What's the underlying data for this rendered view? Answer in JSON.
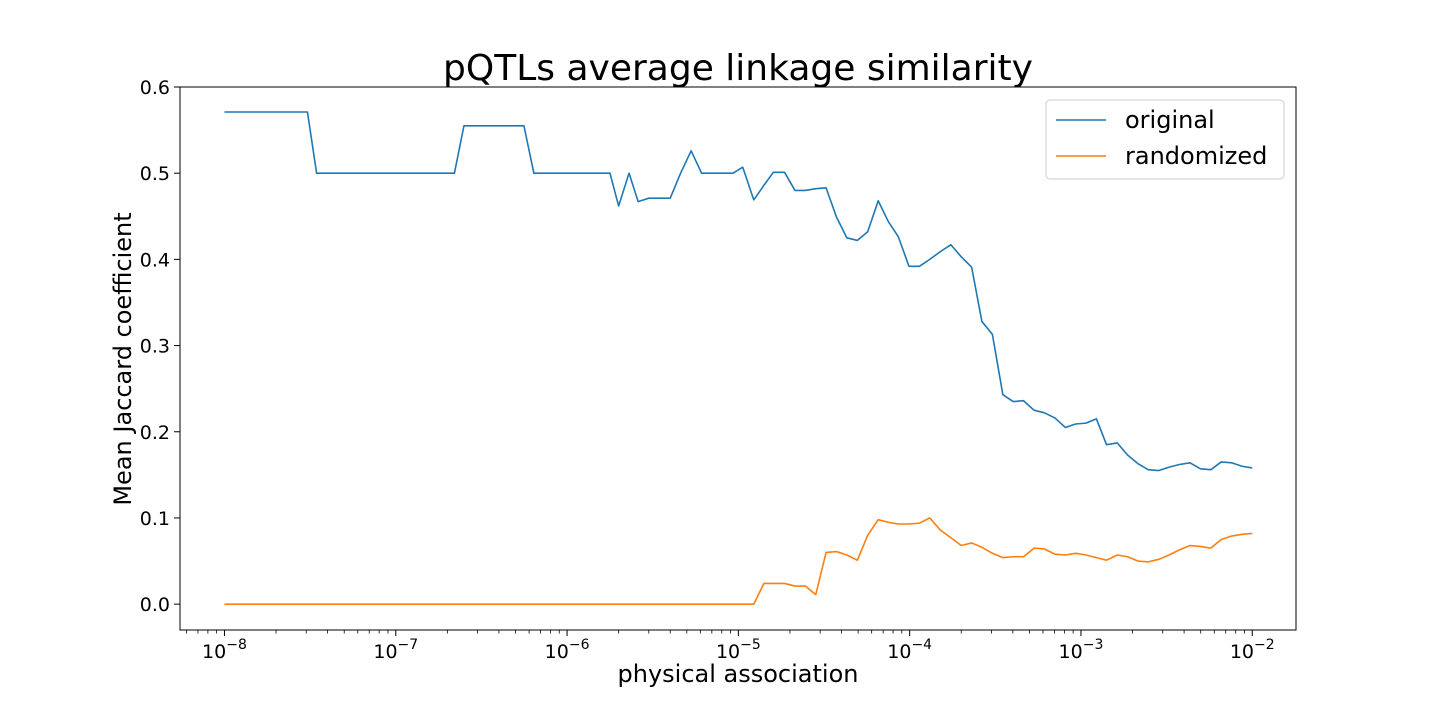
{
  "chart_data": {
    "type": "line",
    "title": "pQTLs average linkage similarity",
    "xlabel": "physical association",
    "ylabel": "Mean Jaccard coefficient",
    "xscale": "log",
    "xlim": [
      5.5e-09,
      0.018
    ],
    "ylim": [
      -0.03,
      0.6
    ],
    "grid": false,
    "legend_position": "top-right",
    "x_ticks": [
      {
        "value": 1e-08,
        "base": "10",
        "exp": "−8"
      },
      {
        "value": 1e-07,
        "base": "10",
        "exp": "−7"
      },
      {
        "value": 1e-06,
        "base": "10",
        "exp": "−6"
      },
      {
        "value": 1e-05,
        "base": "10",
        "exp": "−5"
      },
      {
        "value": 0.0001,
        "base": "10",
        "exp": "−4"
      },
      {
        "value": 0.001,
        "base": "10",
        "exp": "−3"
      },
      {
        "value": 0.01,
        "base": "10",
        "exp": "−2"
      }
    ],
    "y_ticks": [
      {
        "value": 0.0,
        "label": "0.0"
      },
      {
        "value": 0.1,
        "label": "0.1"
      },
      {
        "value": 0.2,
        "label": "0.2"
      },
      {
        "value": 0.3,
        "label": "0.3"
      },
      {
        "value": 0.4,
        "label": "0.4"
      },
      {
        "value": 0.5,
        "label": "0.5"
      },
      {
        "value": 0.6,
        "label": "0.6"
      }
    ],
    "series": [
      {
        "name": "original",
        "color": "#1f77b4",
        "points": [
          [
            1e-08,
            0.571
          ],
          [
            3.05e-08,
            0.571
          ],
          [
            3.45e-08,
            0.5
          ],
          [
            2.2e-07,
            0.5
          ],
          [
            2.5e-07,
            0.555
          ],
          [
            5.6e-07,
            0.555
          ],
          [
            6.4e-07,
            0.5
          ],
          [
            1.78e-06,
            0.5
          ],
          [
            2e-06,
            0.462
          ],
          [
            2.3e-06,
            0.5
          ],
          [
            2.6e-06,
            0.467
          ],
          [
            3e-06,
            0.471
          ],
          [
            4e-06,
            0.471
          ],
          [
            4.6e-06,
            0.5
          ],
          [
            5.3e-06,
            0.526
          ],
          [
            6.1e-06,
            0.5
          ],
          [
            8e-06,
            0.5
          ],
          [
            9.3e-06,
            0.5
          ],
          [
            1.06e-05,
            0.507
          ],
          [
            1.23e-05,
            0.469
          ],
          [
            1.41e-05,
            0.486
          ],
          [
            1.6e-05,
            0.501
          ],
          [
            1.86e-05,
            0.501
          ],
          [
            2.14e-05,
            0.48
          ],
          [
            2.46e-05,
            0.48
          ],
          [
            2.83e-05,
            0.482
          ],
          [
            3.25e-05,
            0.483
          ],
          [
            3.74e-05,
            0.449
          ],
          [
            4.3e-05,
            0.425
          ],
          [
            4.95e-05,
            0.422
          ],
          [
            5.69e-05,
            0.432
          ],
          [
            6.55e-05,
            0.468
          ],
          [
            7.5e-05,
            0.444
          ],
          [
            8.6e-05,
            0.426
          ],
          [
            9.9e-05,
            0.392
          ],
          [
            0.000114,
            0.392
          ],
          [
            0.000131,
            0.4
          ],
          [
            0.000151,
            0.409
          ],
          [
            0.000174,
            0.417
          ],
          [
            0.0002,
            0.403
          ],
          [
            0.00023,
            0.391
          ],
          [
            0.000264,
            0.328
          ],
          [
            0.000304,
            0.313
          ],
          [
            0.00035,
            0.243
          ],
          [
            0.000402,
            0.235
          ],
          [
            0.000462,
            0.236
          ],
          [
            0.000532,
            0.225
          ],
          [
            0.000612,
            0.222
          ],
          [
            0.000704,
            0.216
          ],
          [
            0.00081,
            0.205
          ],
          [
            0.00093,
            0.209
          ],
          [
            0.00107,
            0.21
          ],
          [
            0.00123,
            0.215
          ],
          [
            0.00141,
            0.185
          ],
          [
            0.00163,
            0.187
          ],
          [
            0.00187,
            0.173
          ],
          [
            0.00215,
            0.163
          ],
          [
            0.00247,
            0.156
          ],
          [
            0.00285,
            0.155
          ],
          [
            0.00327,
            0.159
          ],
          [
            0.00376,
            0.162
          ],
          [
            0.00433,
            0.164
          ],
          [
            0.00498,
            0.157
          ],
          [
            0.00573,
            0.156
          ],
          [
            0.00659,
            0.165
          ],
          [
            0.00758,
            0.164
          ],
          [
            0.00871,
            0.16
          ],
          [
            0.01,
            0.158
          ]
        ]
      },
      {
        "name": "randomized",
        "color": "#ff7f0e",
        "points": [
          [
            1e-08,
            0.0
          ],
          [
            1.23e-05,
            0.0
          ],
          [
            1.41e-05,
            0.024
          ],
          [
            1.86e-05,
            0.024
          ],
          [
            2.14e-05,
            0.021
          ],
          [
            2.46e-05,
            0.021
          ],
          [
            2.83e-05,
            0.011
          ],
          [
            3.25e-05,
            0.06
          ],
          [
            3.74e-05,
            0.061
          ],
          [
            4.3e-05,
            0.057
          ],
          [
            4.95e-05,
            0.051
          ],
          [
            5.69e-05,
            0.08
          ],
          [
            6.55e-05,
            0.098
          ],
          [
            7.5e-05,
            0.095
          ],
          [
            8.6e-05,
            0.093
          ],
          [
            9.9e-05,
            0.093
          ],
          [
            0.000114,
            0.094
          ],
          [
            0.000131,
            0.1
          ],
          [
            0.000151,
            0.086
          ],
          [
            0.000174,
            0.077
          ],
          [
            0.0002,
            0.068
          ],
          [
            0.00023,
            0.071
          ],
          [
            0.000264,
            0.066
          ],
          [
            0.000304,
            0.059
          ],
          [
            0.00035,
            0.054
          ],
          [
            0.000402,
            0.055
          ],
          [
            0.000462,
            0.055
          ],
          [
            0.000532,
            0.065
          ],
          [
            0.000612,
            0.064
          ],
          [
            0.000704,
            0.058
          ],
          [
            0.00081,
            0.057
          ],
          [
            0.00093,
            0.059
          ],
          [
            0.00107,
            0.057
          ],
          [
            0.00123,
            0.054
          ],
          [
            0.00141,
            0.051
          ],
          [
            0.00163,
            0.057
          ],
          [
            0.00187,
            0.055
          ],
          [
            0.00215,
            0.05
          ],
          [
            0.00247,
            0.049
          ],
          [
            0.00285,
            0.052
          ],
          [
            0.00327,
            0.057
          ],
          [
            0.00376,
            0.063
          ],
          [
            0.00433,
            0.068
          ],
          [
            0.00498,
            0.067
          ],
          [
            0.00573,
            0.065
          ],
          [
            0.00659,
            0.075
          ],
          [
            0.00758,
            0.079
          ],
          [
            0.00871,
            0.081
          ],
          [
            0.01,
            0.082
          ]
        ]
      }
    ]
  }
}
